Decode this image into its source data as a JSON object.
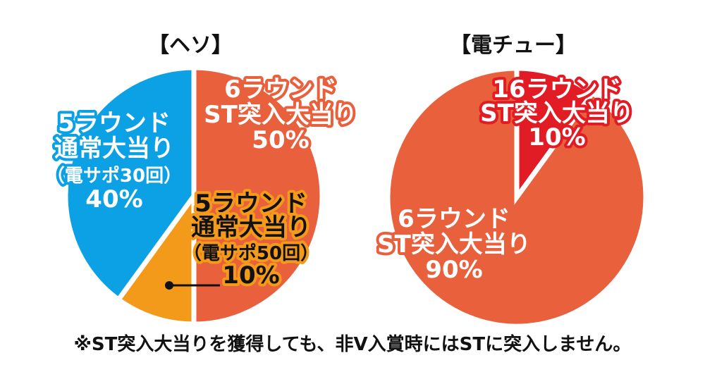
{
  "footnote": "※ST突入大当りを獲得しても、非V入賞時にはSTに突入しません。",
  "chart_data": [
    {
      "type": "pie",
      "title": "【ヘソ】",
      "slices": [
        {
          "lines": [
            "6ラウンド",
            "ST突入大当り",
            "50%"
          ],
          "value": 50,
          "color": "#e8603c",
          "text_color": "#ffffff",
          "outline_color": "#e8603c"
        },
        {
          "lines": [
            "5ラウンド",
            "通常大当り",
            "（電サポ50回）",
            "10%"
          ],
          "value": 10,
          "color": "#f39a1a",
          "text_color": "#111111",
          "outline_color": "#f39a1a"
        },
        {
          "lines": [
            "5ラウンド",
            "通常大当り",
            "（電サポ30回）",
            "40%"
          ],
          "value": 40,
          "color": "#0ca0e4",
          "text_color": "#ffffff",
          "outline_color": "#0ca0e4"
        }
      ]
    },
    {
      "type": "pie",
      "title": "【電チュー】",
      "slices": [
        {
          "lines": [
            "16ラウンド",
            "ST突入大当り",
            "10%"
          ],
          "value": 10,
          "color": "#e11c24",
          "text_color": "#ffffff",
          "outline_color": "#e11c24"
        },
        {
          "lines": [
            "6ラウンド",
            "ST突入大当り",
            "90%"
          ],
          "value": 90,
          "color": "#e8603c",
          "text_color": "#ffffff",
          "outline_color": "#e8603c"
        }
      ]
    }
  ]
}
